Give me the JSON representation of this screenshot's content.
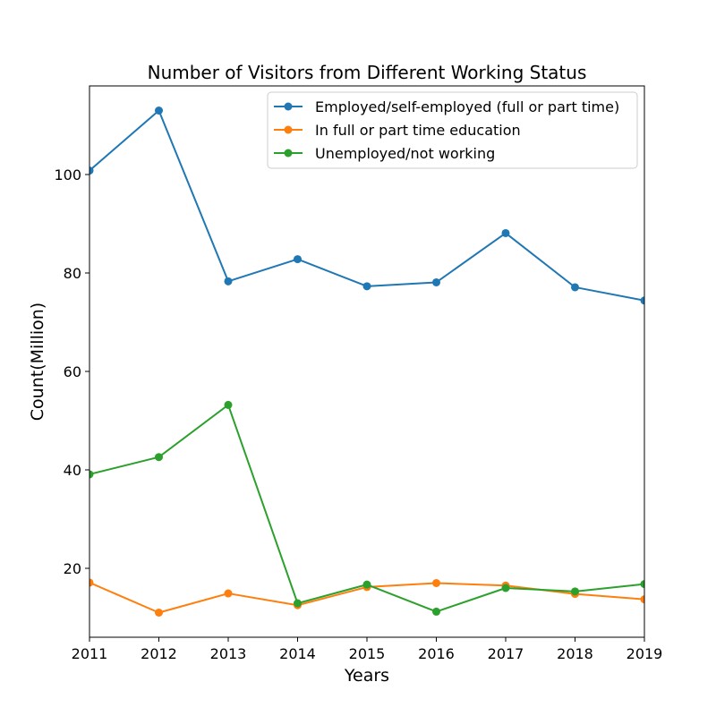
{
  "chart_data": {
    "type": "line",
    "title": "Number of Visitors from Different Working Status",
    "xlabel": "Years",
    "ylabel": "Count(Million)",
    "x": [
      2011,
      2012,
      2013,
      2014,
      2015,
      2016,
      2017,
      2018,
      2019
    ],
    "xlim": [
      2011,
      2019
    ],
    "ylim": [
      6,
      118
    ],
    "yticks": [
      20,
      40,
      60,
      80,
      100
    ],
    "grid": false,
    "legend": "top-right",
    "series": [
      {
        "name": "Employed/self-employed (full or part time)",
        "color": "#1f77b4",
        "values": [
          100.8,
          113.0,
          78.3,
          82.8,
          77.3,
          78.1,
          88.1,
          77.1,
          74.4
        ]
      },
      {
        "name": "In full or part time education",
        "color": "#ff7f0e",
        "values": [
          17.1,
          11.0,
          14.9,
          12.5,
          16.2,
          17.0,
          16.5,
          14.8,
          13.7
        ]
      },
      {
        "name": "Unemployed/not working",
        "color": "#2ca02c",
        "values": [
          39.1,
          42.6,
          53.2,
          12.9,
          16.7,
          11.2,
          16.0,
          15.3,
          16.8
        ]
      }
    ]
  }
}
